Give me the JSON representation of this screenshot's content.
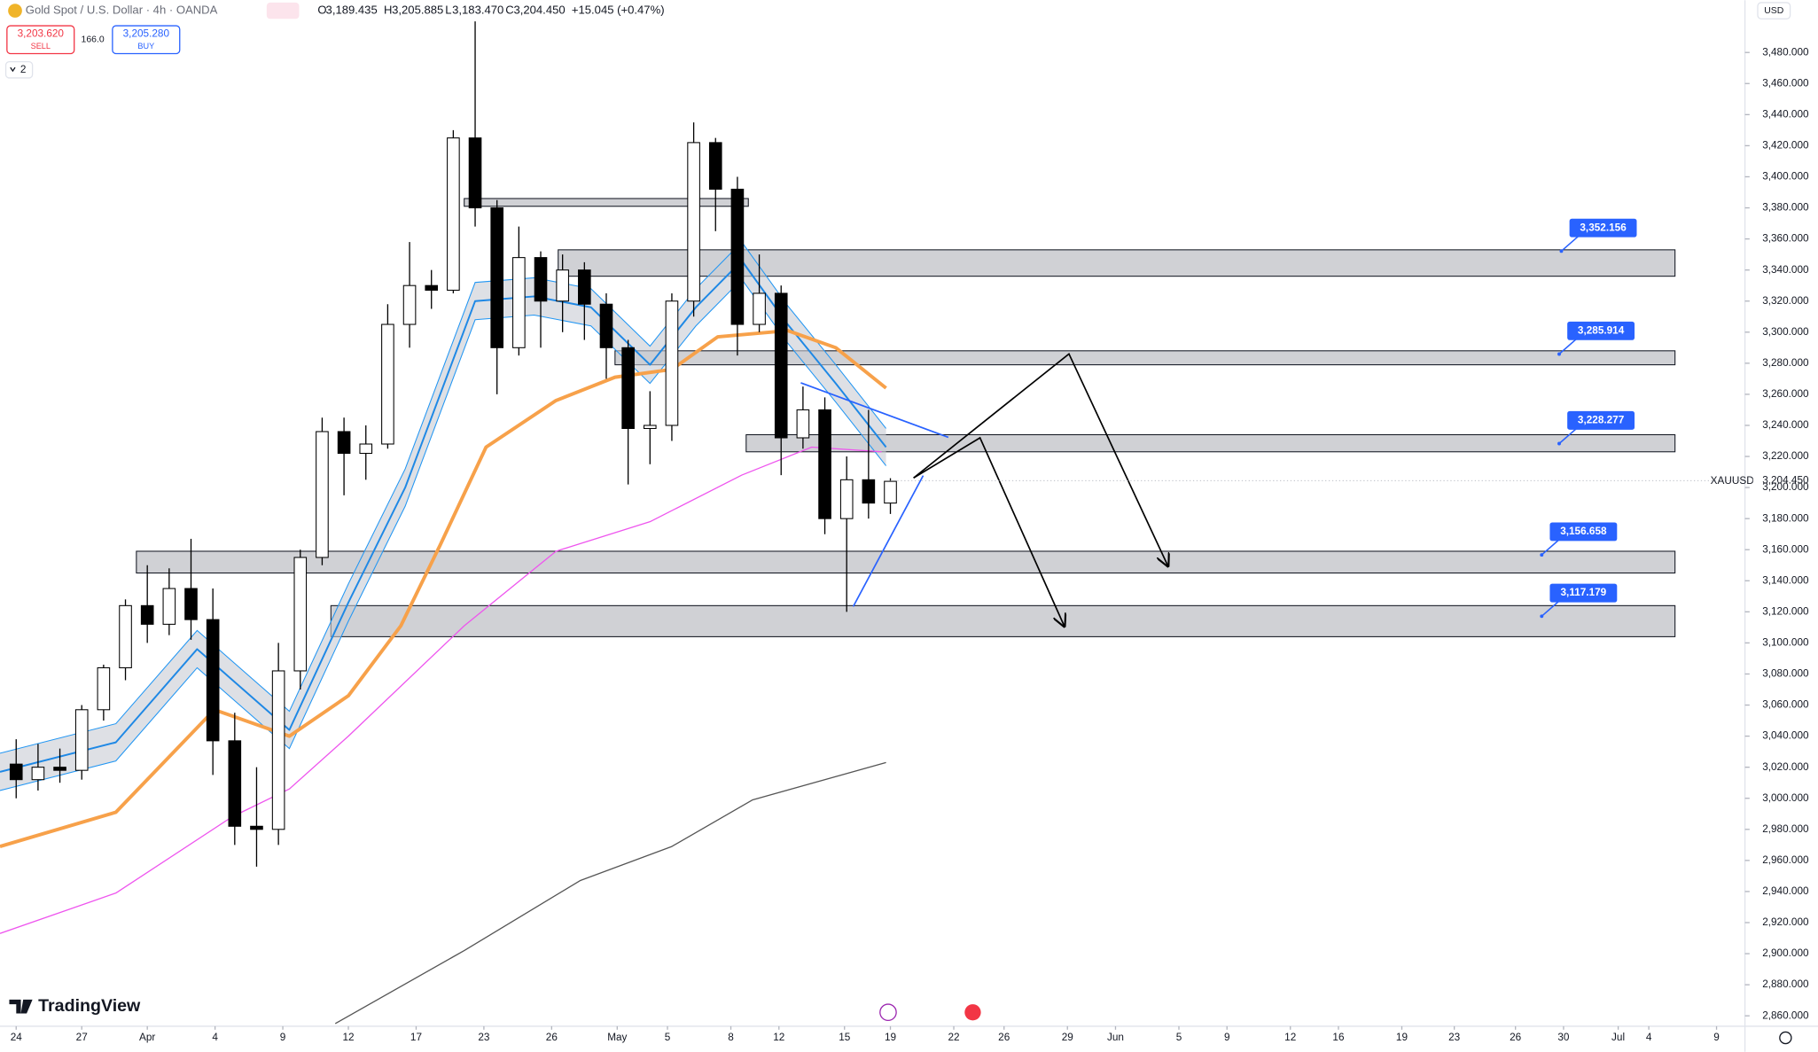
{
  "header": {
    "title": "Gold Spot / U.S. Dollar · 4h · OANDA",
    "o_label": "O",
    "open": "3,189.435",
    "h_label": "H",
    "high": "3,205.885",
    "l_label": "L",
    "low": "3,183.470",
    "c_label": "C",
    "close": "3,204.450",
    "change": "+15.045 (+0.47%)",
    "sell_price": "3,203.620",
    "sell": "SELL",
    "spread": "166.0",
    "buy_price": "3,205.280",
    "buy": "BUY",
    "indicators": "2",
    "currency": "USD",
    "symbol": "XAUUSD",
    "last_price": "3,204.450",
    "brand": "TradingView"
  },
  "chart_data": {
    "type": "candlestick",
    "xlim": [
      -0.74,
      79.1
    ],
    "ylim": [
      2853.3,
      3513.6
    ],
    "xticks": [
      {
        "value": 0,
        "label": "24"
      },
      {
        "value": 3.0,
        "label": "27"
      },
      {
        "value": 6.0,
        "label": "Apr"
      },
      {
        "value": 9.1,
        "label": "4"
      },
      {
        "value": 12.2,
        "label": "9"
      },
      {
        "value": 15.2,
        "label": "12"
      },
      {
        "value": 18.3,
        "label": "17"
      },
      {
        "value": 21.4,
        "label": "23"
      },
      {
        "value": 24.5,
        "label": "26"
      },
      {
        "value": 27.5,
        "label": "May"
      },
      {
        "value": 29.8,
        "label": "5"
      },
      {
        "value": 32.7,
        "label": "8"
      },
      {
        "value": 34.9,
        "label": "12"
      },
      {
        "value": 37.9,
        "label": "15"
      },
      {
        "value": 40.0,
        "label": "19"
      },
      {
        "value": 42.9,
        "label": "22"
      },
      {
        "value": 45.2,
        "label": "26"
      },
      {
        "value": 48.1,
        "label": "29"
      },
      {
        "value": 50.3,
        "label": "Jun"
      },
      {
        "value": 53.2,
        "label": "5"
      },
      {
        "value": 55.4,
        "label": "9"
      },
      {
        "value": 58.3,
        "label": "12"
      },
      {
        "value": 60.5,
        "label": "16"
      },
      {
        "value": 63.4,
        "label": "19"
      },
      {
        "value": 65.8,
        "label": "23"
      },
      {
        "value": 68.6,
        "label": "26"
      },
      {
        "value": 70.8,
        "label": "30"
      },
      {
        "value": 73.3,
        "label": "Jul"
      },
      {
        "value": 74.7,
        "label": "4"
      },
      {
        "value": 77.8,
        "label": "9"
      }
    ],
    "yticks": [
      {
        "value": 3480,
        "label": "3,480.000"
      },
      {
        "value": 3460,
        "label": "3,460.000"
      },
      {
        "value": 3440,
        "label": "3,440.000"
      },
      {
        "value": 3420,
        "label": "3,420.000"
      },
      {
        "value": 3400,
        "label": "3,400.000"
      },
      {
        "value": 3380,
        "label": "3,380.000"
      },
      {
        "value": 3360,
        "label": "3,360.000"
      },
      {
        "value": 3340,
        "label": "3,340.000"
      },
      {
        "value": 3320,
        "label": "3,320.000"
      },
      {
        "value": 3300,
        "label": "3,300.000"
      },
      {
        "value": 3280,
        "label": "3,280.000"
      },
      {
        "value": 3260,
        "label": "3,260.000"
      },
      {
        "value": 3240,
        "label": "3,240.000"
      },
      {
        "value": 3220,
        "label": "3,220.000"
      },
      {
        "value": 3200,
        "label": "3,200.000"
      },
      {
        "value": 3180,
        "label": "3,180.000"
      },
      {
        "value": 3160,
        "label": "3,160.000"
      },
      {
        "value": 3140,
        "label": "3,140.000"
      },
      {
        "value": 3120,
        "label": "3,120.000"
      },
      {
        "value": 3100,
        "label": "3,100.000"
      },
      {
        "value": 3080,
        "label": "3,080.000"
      },
      {
        "value": 3060,
        "label": "3,060.000"
      },
      {
        "value": 3040,
        "label": "3,040.000"
      },
      {
        "value": 3020,
        "label": "3,020.000"
      },
      {
        "value": 3000,
        "label": "3,000.000"
      },
      {
        "value": 2980,
        "label": "2,980.000"
      },
      {
        "value": 2960,
        "label": "2,960.000"
      },
      {
        "value": 2940,
        "label": "2,940.000"
      },
      {
        "value": 2920,
        "label": "2,920.000"
      },
      {
        "value": 2900,
        "label": "2,900.000"
      },
      {
        "value": 2880,
        "label": "2,880.000"
      },
      {
        "value": 2860,
        "label": "2,860.000"
      }
    ],
    "last_value": 3204.45,
    "up_color": "#ffffff",
    "down_color": "#000000",
    "candles": {
      "x": [
        0,
        1,
        2,
        3,
        4,
        5,
        6,
        7,
        8,
        9,
        10,
        11,
        12,
        13,
        14,
        15,
        16,
        17,
        18,
        19,
        20,
        21,
        22,
        23,
        24,
        25,
        26,
        27,
        28,
        29,
        30,
        31,
        32,
        33,
        34,
        35,
        36,
        37,
        38,
        39,
        40
      ],
      "open": [
        3022,
        3012,
        3020,
        3018,
        3057,
        3084,
        3124,
        3112,
        3135,
        3115,
        3037,
        2982,
        2980,
        3082,
        3155,
        3236,
        3222,
        3228,
        3305,
        3330,
        3327,
        3425,
        3380,
        3290,
        3348,
        3320,
        3340,
        3318,
        3290,
        3238,
        3240,
        3320,
        3422,
        3392,
        3305,
        3325,
        3232,
        3250,
        3180,
        3205,
        3190
      ],
      "high": [
        3038,
        3035,
        3032,
        3060,
        3086,
        3128,
        3150,
        3148,
        3167,
        3135,
        3055,
        3020,
        3100,
        3160,
        3245,
        3245,
        3240,
        3318,
        3358,
        3340,
        3430,
        3500,
        3385,
        3368,
        3352,
        3350,
        3345,
        3325,
        3295,
        3262,
        3325,
        3435,
        3425,
        3400,
        3350,
        3330,
        3265,
        3258,
        3220,
        3250,
        3206
      ],
      "low": [
        3000,
        3005,
        3010,
        3012,
        3050,
        3076,
        3100,
        3105,
        3102,
        3015,
        2970,
        2956,
        2970,
        3070,
        3150,
        3195,
        3205,
        3225,
        3290,
        3315,
        3325,
        3368,
        3260,
        3285,
        3290,
        3300,
        3295,
        3270,
        3202,
        3215,
        3230,
        3310,
        3365,
        3285,
        3300,
        3208,
        3225,
        3170,
        3120,
        3180,
        3183
      ],
      "close": [
        3012,
        3020,
        3018,
        3057,
        3084,
        3124,
        3112,
        3135,
        3115,
        3037,
        2982,
        2980,
        3082,
        3155,
        3236,
        3222,
        3228,
        3305,
        3330,
        3327,
        3425,
        3380,
        3290,
        3348,
        3320,
        3340,
        3318,
        3290,
        3238,
        3240,
        3320,
        3422,
        3392,
        3305,
        3325,
        3232,
        3250,
        3180,
        3205,
        3190,
        3204
      ]
    },
    "band": {
      "color": "#2196f3",
      "fill": "#c8ccd4",
      "x": [
        -0.74,
        4.56,
        8.28,
        12.5,
        15.2,
        17.8,
        21.0,
        23.7,
        26.3,
        29.0,
        31.1,
        33.2,
        35.3,
        37.5,
        39.8
      ],
      "upper": [
        3029,
        3048,
        3108,
        3056,
        3138,
        3212,
        3332,
        3335,
        3328,
        3291,
        3328,
        3358,
        3317,
        3279,
        3238
      ],
      "lower": [
        3005,
        3024,
        3084,
        3032,
        3114,
        3188,
        3308,
        3311,
        3304,
        3267,
        3304,
        3334,
        3293,
        3255,
        3214
      ]
    },
    "lines": [
      {
        "color": "#1e88e5",
        "width": 1.5,
        "x": [
          -0.74,
          4.56,
          8.28,
          12.5,
          15.2,
          17.8,
          21.0,
          23.7,
          26.3,
          29.0,
          31.1,
          33.2,
          35.3,
          37.5,
          39.8
        ],
        "values": [
          3017,
          3036,
          3096,
          3044,
          3126,
          3200,
          3320,
          3323,
          3316,
          3279,
          3316,
          3346,
          3305,
          3267,
          3226
        ]
      },
      {
        "color": "#f7a14a",
        "width": 3,
        "x": [
          -0.74,
          4.56,
          9.07,
          12.5,
          15.2,
          17.6,
          19.4,
          21.5,
          24.7,
          27.4,
          30.0,
          32.1,
          35.3,
          37.5,
          39.8
        ],
        "values": [
          2969,
          2991,
          3057,
          3040,
          3066,
          3111,
          3163,
          3226,
          3256,
          3271,
          3276,
          3297,
          3301,
          3290,
          3264
        ]
      },
      {
        "color": "#ee55ee",
        "width": 1,
        "x": [
          -0.74,
          4.56,
          9.87,
          12.5,
          15.2,
          20.5,
          24.7,
          29.0,
          33.2,
          36.4,
          39.6
        ],
        "values": [
          2913,
          2939,
          2988,
          3006,
          3040,
          3111,
          3159,
          3178,
          3208,
          3226,
          3223
        ]
      },
      {
        "color": "#555555",
        "width": 1,
        "x": [
          14.6,
          20.5,
          25.8,
          30.0,
          33.7,
          39.8
        ],
        "values": [
          2855,
          2902,
          2947,
          2969,
          2999,
          3023
        ]
      }
    ],
    "zones": [
      {
        "x": [
          20.5,
          33.5
        ],
        "low": 3381,
        "high": 3386
      },
      {
        "x": [
          24.8,
          75.9
        ],
        "low": 3336,
        "high": 3353
      },
      {
        "x": [
          27.4,
          75.9
        ],
        "low": 3279,
        "high": 3288
      },
      {
        "x": [
          33.4,
          75.9
        ],
        "low": 3223,
        "high": 3234
      },
      {
        "x": [
          5.5,
          75.9
        ],
        "low": 3145,
        "high": 3159
      },
      {
        "x": [
          14.4,
          75.9
        ],
        "low": 3104,
        "high": 3124
      }
    ],
    "drawings": [
      {
        "color": "#000000",
        "arrow": true,
        "x": [
          41.06,
          48.17,
          52.7
        ],
        "values": [
          3206.2,
          3286,
          3149.5
        ]
      },
      {
        "color": "#000000",
        "arrow": true,
        "x": [
          41.06,
          44.1,
          47.96
        ],
        "values": [
          3206.2,
          3232,
          3110.7
        ]
      },
      {
        "color": "#2962ff",
        "arrow": false,
        "x": [
          38.3,
          41.5
        ],
        "values": [
          3123.4,
          3207.7
        ]
      },
      {
        "color": "#2962ff",
        "arrow": false,
        "x": [
          35.9,
          42.65
        ],
        "values": [
          3267.4,
          3232.3
        ]
      }
    ],
    "callouts": [
      {
        "x": 70.7,
        "value": 3352.156,
        "label": "3,352.156"
      },
      {
        "x": 70.6,
        "value": 3285.914,
        "label": "3,285.914"
      },
      {
        "x": 70.6,
        "value": 3228.277,
        "label": "3,228.277"
      },
      {
        "x": 69.8,
        "value": 3156.658,
        "label": "3,156.658"
      },
      {
        "x": 69.8,
        "value": 3117.179,
        "label": "3,117.179"
      }
    ],
    "callout_color": "#2962ff"
  }
}
